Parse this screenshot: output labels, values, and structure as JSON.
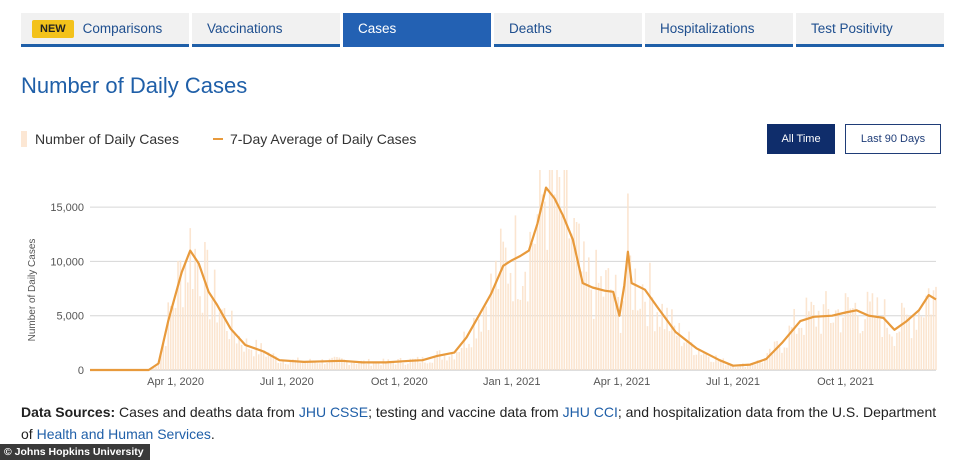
{
  "tabs": [
    {
      "badge": "NEW",
      "label": "Comparisons",
      "active": false
    },
    {
      "label": "Vaccinations",
      "active": false
    },
    {
      "label": "Cases",
      "active": true
    },
    {
      "label": "Deaths",
      "active": false
    },
    {
      "label": "Hospitalizations",
      "active": false
    },
    {
      "label": "Test Positivity",
      "active": false
    }
  ],
  "page_title": "Number of Daily Cases",
  "legend": {
    "bars_label": "Number of Daily Cases",
    "line_label": "7-Day Average of Daily Cases"
  },
  "range_buttons": {
    "all_time": "All Time",
    "last_90": "Last 90 Days"
  },
  "sources": {
    "prefix": "Data Sources:",
    "t1": " Cases and deaths data from ",
    "l1": "JHU CSSE",
    "t2": "; testing and vaccine data from ",
    "l2": "JHU CCI",
    "t3": "; and hospitalization data from the U.S. Department of ",
    "l3": "Health and Human Services",
    "t4": "."
  },
  "credit": "© Johns Hopkins University",
  "colors": {
    "accent": "#1f5fa8",
    "active_tab": "#2361b3",
    "badge": "#f3c21b",
    "line": "#e89a3c",
    "bars": "#fce7d4",
    "button_dark": "#0f2d6b"
  },
  "chart_data": {
    "type": "line",
    "ylabel": "Number of Daily Cases",
    "yticks": [
      0,
      5000,
      10000,
      15000
    ],
    "ytick_labels": [
      "0",
      "5,000",
      "10,000",
      "15,000"
    ],
    "ylim": [
      0,
      17500
    ],
    "x_range": [
      "2020-01-22",
      "2021-12-14"
    ],
    "xticks": [
      "2020-04-01",
      "2020-07-01",
      "2020-10-01",
      "2021-01-01",
      "2021-04-01",
      "2021-07-01",
      "2021-10-01"
    ],
    "xtick_labels": [
      "Apr 1, 2020",
      "Jul 1, 2020",
      "Oct 1, 2020",
      "Jan 1, 2021",
      "Apr 1, 2021",
      "Jul 1, 2021",
      "Oct 1, 2021"
    ],
    "grid": true,
    "series": [
      {
        "name": "7-Day Average of Daily Cases",
        "points": [
          [
            "2020-01-22",
            0
          ],
          [
            "2020-03-10",
            0
          ],
          [
            "2020-03-18",
            600
          ],
          [
            "2020-03-26",
            4500
          ],
          [
            "2020-04-06",
            9000
          ],
          [
            "2020-04-13",
            11000
          ],
          [
            "2020-04-20",
            9800
          ],
          [
            "2020-04-28",
            7200
          ],
          [
            "2020-05-05",
            6000
          ],
          [
            "2020-05-16",
            3800
          ],
          [
            "2020-05-28",
            2300
          ],
          [
            "2020-06-12",
            1700
          ],
          [
            "2020-06-25",
            900
          ],
          [
            "2020-07-15",
            750
          ],
          [
            "2020-08-01",
            800
          ],
          [
            "2020-08-15",
            850
          ],
          [
            "2020-09-01",
            700
          ],
          [
            "2020-09-20",
            700
          ],
          [
            "2020-10-10",
            850
          ],
          [
            "2020-10-20",
            900
          ],
          [
            "2020-11-01",
            1300
          ],
          [
            "2020-11-15",
            1600
          ],
          [
            "2020-11-25",
            3000
          ],
          [
            "2020-12-05",
            5000
          ],
          [
            "2020-12-15",
            7000
          ],
          [
            "2020-12-25",
            9600
          ],
          [
            "2021-01-01",
            10100
          ],
          [
            "2021-01-08",
            10500
          ],
          [
            "2021-01-15",
            11000
          ],
          [
            "2021-01-22",
            13500
          ],
          [
            "2021-01-29",
            16800
          ],
          [
            "2021-02-05",
            15800
          ],
          [
            "2021-02-12",
            14200
          ],
          [
            "2021-02-20",
            12000
          ],
          [
            "2021-02-28",
            8000
          ],
          [
            "2021-03-08",
            7600
          ],
          [
            "2021-03-18",
            7300
          ],
          [
            "2021-03-25",
            7200
          ],
          [
            "2021-03-30",
            5000
          ],
          [
            "2021-04-03",
            7800
          ],
          [
            "2021-04-06",
            10900
          ],
          [
            "2021-04-09",
            8000
          ],
          [
            "2021-04-20",
            7400
          ],
          [
            "2021-04-30",
            5800
          ],
          [
            "2021-05-15",
            3500
          ],
          [
            "2021-06-01",
            2000
          ],
          [
            "2021-06-20",
            900
          ],
          [
            "2021-07-01",
            400
          ],
          [
            "2021-07-15",
            500
          ],
          [
            "2021-07-28",
            1000
          ],
          [
            "2021-08-10",
            2500
          ],
          [
            "2021-08-25",
            4500
          ],
          [
            "2021-09-05",
            4900
          ],
          [
            "2021-09-20",
            5000
          ],
          [
            "2021-10-01",
            5300
          ],
          [
            "2021-10-10",
            5500
          ],
          [
            "2021-10-20",
            5000
          ],
          [
            "2021-11-01",
            4800
          ],
          [
            "2021-11-10",
            3700
          ],
          [
            "2021-11-20",
            4500
          ],
          [
            "2021-11-30",
            5500
          ],
          [
            "2021-12-08",
            6900
          ],
          [
            "2021-12-14",
            6500
          ]
        ]
      }
    ]
  }
}
